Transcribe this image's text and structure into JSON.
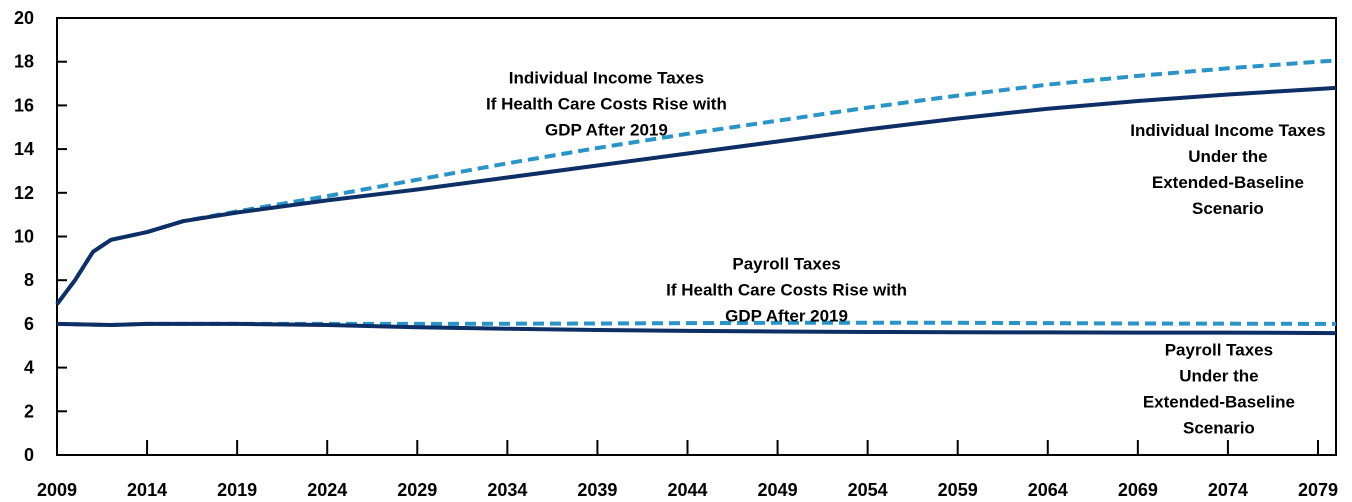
{
  "chart_data": {
    "type": "line",
    "title": "",
    "xlabel": "",
    "ylabel": "",
    "xlim": [
      2009,
      2080
    ],
    "ylim": [
      0,
      20
    ],
    "x_ticks": [
      2009,
      2014,
      2019,
      2024,
      2029,
      2034,
      2039,
      2044,
      2049,
      2054,
      2059,
      2064,
      2069,
      2074,
      2079
    ],
    "y_ticks": [
      0,
      2,
      4,
      6,
      8,
      10,
      12,
      14,
      16,
      18,
      20
    ],
    "grid": false,
    "colors": {
      "baseline": "#0d2f66",
      "health_scenario": "#2994c8"
    },
    "series": [
      {
        "id": "income_health",
        "style": "dashed",
        "x": [
          2009,
          2010,
          2011,
          2012,
          2014,
          2016,
          2019,
          2024,
          2029,
          2034,
          2039,
          2044,
          2049,
          2054,
          2059,
          2064,
          2069,
          2074,
          2079,
          2080
        ],
        "y": [
          6.9,
          8.0,
          9.3,
          9.85,
          10.2,
          10.7,
          11.15,
          11.85,
          12.6,
          13.35,
          14.05,
          14.7,
          15.3,
          15.9,
          16.45,
          16.95,
          17.35,
          17.7,
          18.0,
          18.05
        ]
      },
      {
        "id": "income_baseline",
        "style": "solid",
        "x": [
          2009,
          2010,
          2011,
          2012,
          2014,
          2016,
          2019,
          2024,
          2029,
          2034,
          2039,
          2044,
          2049,
          2054,
          2059,
          2064,
          2069,
          2074,
          2079,
          2080
        ],
        "y": [
          6.9,
          8.0,
          9.3,
          9.85,
          10.2,
          10.7,
          11.1,
          11.65,
          12.15,
          12.7,
          13.25,
          13.8,
          14.35,
          14.9,
          15.4,
          15.85,
          16.2,
          16.5,
          16.75,
          16.8
        ]
      },
      {
        "id": "payroll_health",
        "style": "dashed",
        "x": [
          2009,
          2012,
          2014,
          2019,
          2024,
          2029,
          2039,
          2049,
          2059,
          2069,
          2080
        ],
        "y": [
          6.0,
          5.95,
          6.0,
          6.0,
          6.0,
          6.0,
          6.02,
          6.05,
          6.05,
          6.02,
          6.0
        ]
      },
      {
        "id": "payroll_baseline",
        "style": "solid",
        "x": [
          2009,
          2012,
          2014,
          2019,
          2024,
          2029,
          2034,
          2039,
          2044,
          2049,
          2054,
          2059,
          2064,
          2069,
          2074,
          2080
        ],
        "y": [
          6.0,
          5.95,
          6.0,
          6.0,
          5.95,
          5.85,
          5.78,
          5.72,
          5.68,
          5.65,
          5.63,
          5.62,
          5.61,
          5.6,
          5.6,
          5.58
        ]
      }
    ],
    "annotations": [
      {
        "id": "income_health_label",
        "lines": [
          "Individual Income Taxes",
          "If Health Care Costs Rise with",
          "GDP After 2019"
        ],
        "x": 2039.5,
        "y": 17.0
      },
      {
        "id": "income_baseline_label",
        "lines": [
          "Individual Income Taxes",
          "Under the",
          "Extended-Baseline",
          "Scenario"
        ],
        "x": 2074,
        "y": 14.6
      },
      {
        "id": "payroll_health_label",
        "lines": [
          "Payroll Taxes",
          "If Health Care Costs Rise with",
          "GDP After 2019"
        ],
        "x": 2049.5,
        "y": 8.5
      },
      {
        "id": "payroll_baseline_label",
        "lines": [
          "Payroll Taxes",
          "Under the",
          "Extended-Baseline",
          "Scenario"
        ],
        "x": 2073.5,
        "y": 4.55
      }
    ]
  }
}
